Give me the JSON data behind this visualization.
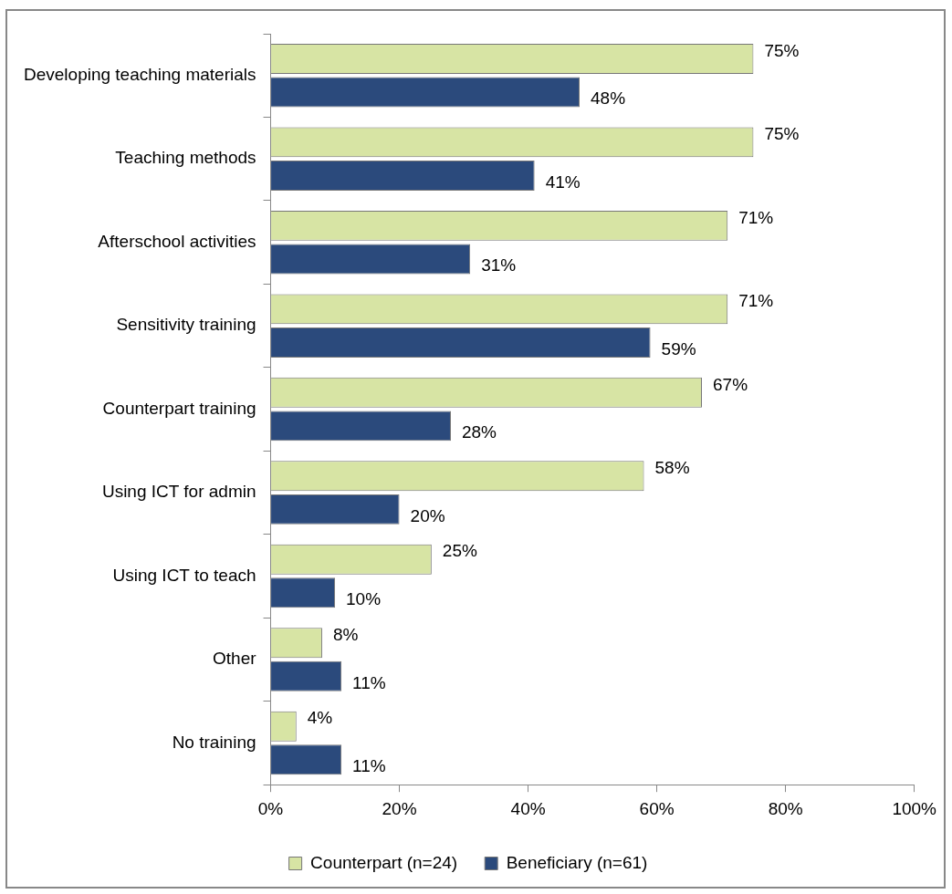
{
  "chart_data": {
    "type": "bar",
    "orientation": "horizontal",
    "categories": [
      "Developing teaching materials",
      "Teaching methods",
      "Afterschool activities",
      "Sensitivity training",
      "Counterpart training",
      "Using ICT for admin",
      "Using ICT to teach",
      "Other",
      "No training"
    ],
    "series": [
      {
        "name": "Counterpart (n=24)",
        "color": "#d7e4a4",
        "values": [
          75,
          75,
          71,
          71,
          67,
          58,
          25,
          8,
          4
        ],
        "value_labels": [
          "75%",
          "75%",
          "71%",
          "71%",
          "67%",
          "58%",
          "25%",
          "8%",
          "4%"
        ]
      },
      {
        "name": "Beneficiary (n=61)",
        "color": "#2b4a7c",
        "values": [
          48,
          41,
          31,
          59,
          28,
          20,
          10,
          11,
          11
        ],
        "value_labels": [
          "48%",
          "41%",
          "31%",
          "59%",
          "28%",
          "20%",
          "10%",
          "11%",
          "11%"
        ]
      }
    ],
    "xlim": [
      0,
      100
    ],
    "xticks": [
      {
        "value": 0,
        "label": "0%"
      },
      {
        "value": 20,
        "label": "20%"
      },
      {
        "value": 40,
        "label": "40%"
      },
      {
        "value": 60,
        "label": "60%"
      },
      {
        "value": 80,
        "label": "80%"
      },
      {
        "value": 100,
        "label": "100%"
      }
    ],
    "grid": false,
    "legend": "bottom"
  }
}
